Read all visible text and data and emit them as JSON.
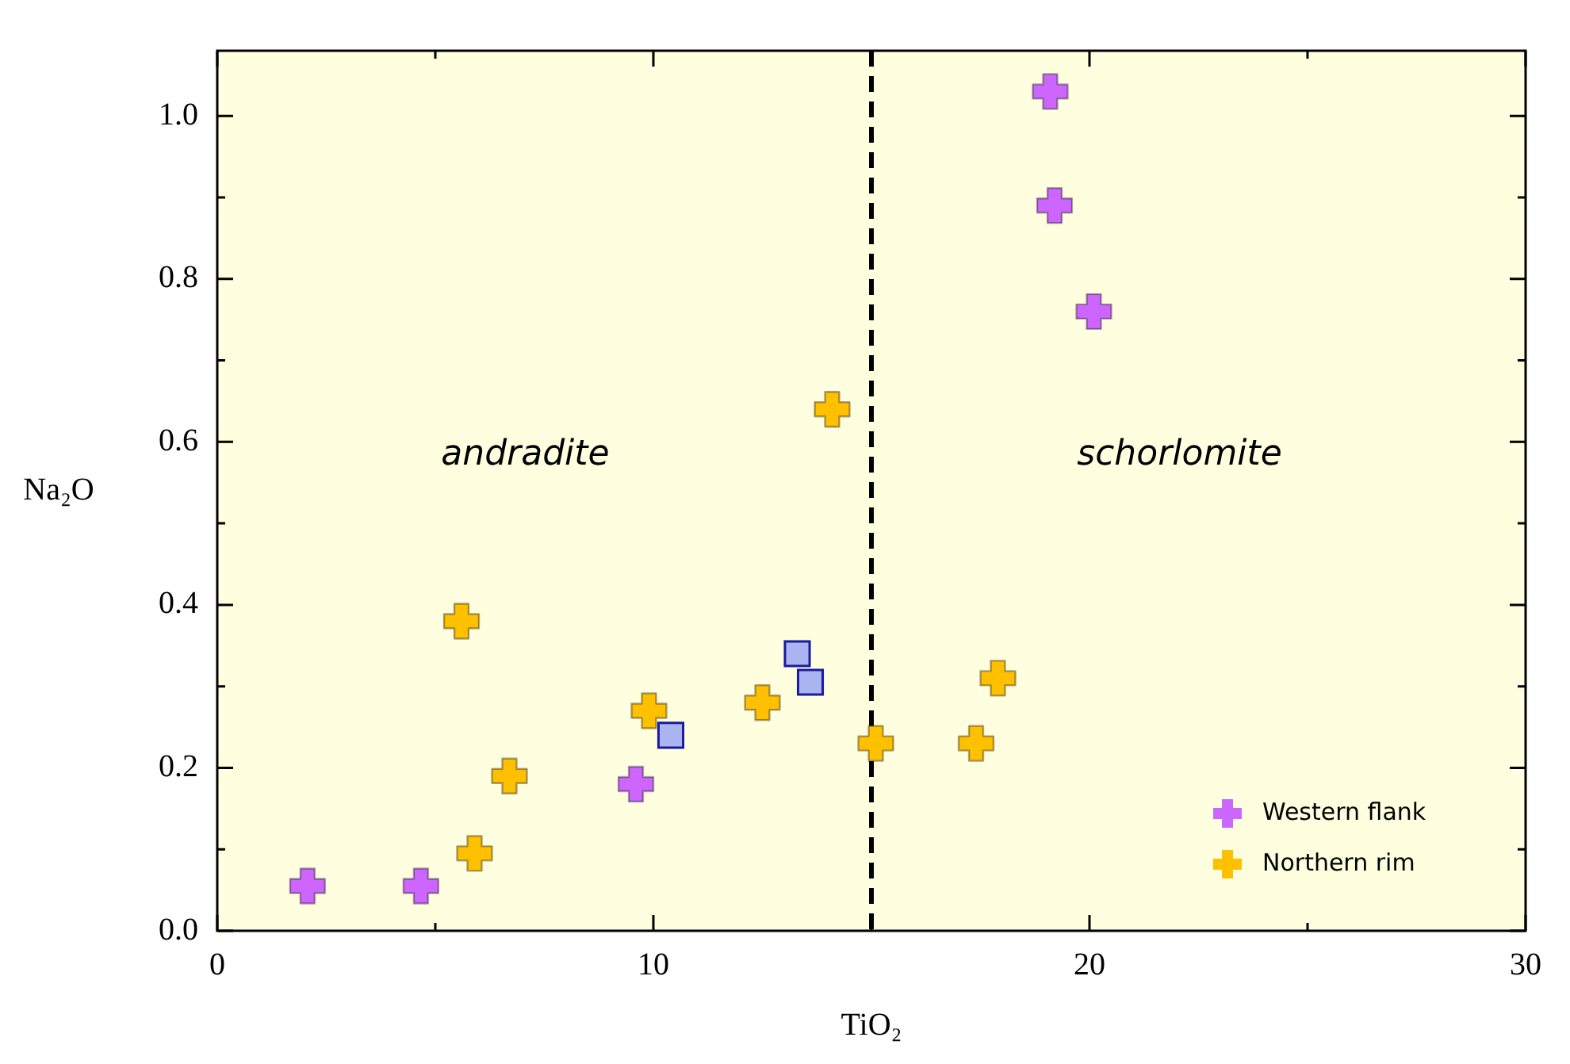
{
  "chart_data": {
    "type": "scatter",
    "xlabel": "TiO₂",
    "ylabel": "Na₂O",
    "xlim": [
      0,
      30
    ],
    "xticks": [
      0,
      10,
      20,
      30
    ],
    "ylim": [
      0,
      1.08
    ],
    "yticks": [
      {
        "value": 0,
        "label": "0.0"
      },
      {
        "value": 0.2,
        "label": "0.2"
      },
      {
        "value": 0.4,
        "label": "0.4"
      },
      {
        "value": 0.6,
        "label": "0.6"
      },
      {
        "value": 0.8,
        "label": "0.8"
      },
      {
        "value": 1,
        "label": "1.0"
      }
    ],
    "grid": false,
    "legend": "bottom right",
    "marker": "cross",
    "ref_lines": [
      {
        "axis": "x",
        "value": 15,
        "color": "#000000",
        "line_style": "dashed"
      }
    ],
    "annotations": [
      "andradite",
      "schorlomite"
    ],
    "series": [
      {
        "name": "Western flank",
        "color": "#cc66ff",
        "x": [
          2.07,
          4.67,
          9.6,
          19.1,
          19.2,
          20.1
        ],
        "values": [
          0.055,
          0.055,
          0.18,
          1.03,
          0.89,
          0.76
        ]
      },
      {
        "name": "Northern rim",
        "color": "#ffc000",
        "x": [
          5.6,
          6.7,
          5.9,
          9.9,
          12.5,
          14.1,
          15.1,
          17.4,
          17.9
        ],
        "values": [
          0.38,
          0.19,
          0.095,
          0.27,
          0.28,
          0.64,
          0.23,
          0.23,
          0.31
        ]
      },
      {
        "color": "#aab4f0",
        "marker": "square",
        "x": [
          10.4,
          13.3,
          13.6
        ],
        "values": [
          0.24,
          0.34,
          0.305
        ]
      }
    ]
  }
}
